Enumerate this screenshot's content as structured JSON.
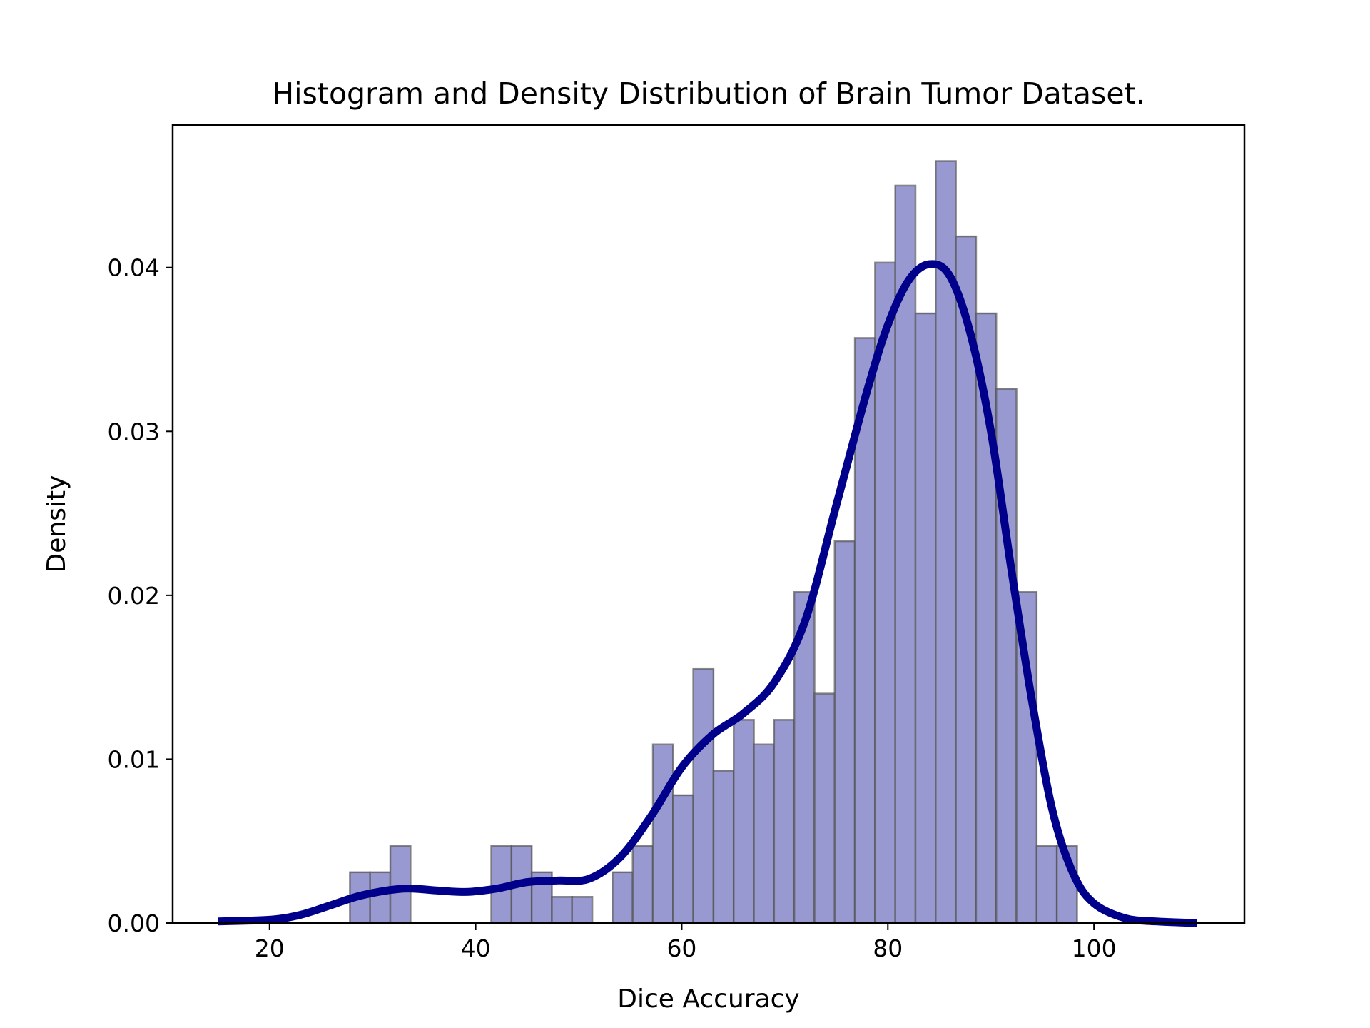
{
  "chart_data": {
    "type": "bar",
    "title": "Histogram and Density Distribution of Brain Tumor Dataset.",
    "xlabel": "Dice Accuracy",
    "ylabel": "Density",
    "xlim": [
      10.6,
      114.6
    ],
    "ylim": [
      0,
      0.0487
    ],
    "x_ticks": [
      20,
      40,
      60,
      80,
      100
    ],
    "x_tick_labels": [
      "20",
      "40",
      "60",
      "80",
      "100"
    ],
    "y_ticks": [
      0.0,
      0.01,
      0.02,
      0.03,
      0.04
    ],
    "y_tick_labels": [
      "0.00",
      "0.01",
      "0.02",
      "0.03",
      "0.04"
    ],
    "grid": false,
    "legend": "none",
    "histogram": {
      "bin_start": 27.8,
      "bin_width": 1.96,
      "values": [
        0.0031,
        0.0031,
        0.0047,
        0,
        0,
        0,
        0,
        0.0047,
        0.0047,
        0.0031,
        0.0016,
        0.0016,
        0,
        0.0031,
        0.0047,
        0.0109,
        0.0078,
        0.0155,
        0.0093,
        0.0124,
        0.0109,
        0.0124,
        0.0202,
        0.014,
        0.0233,
        0.0357,
        0.0403,
        0.045,
        0.0372,
        0.0465,
        0.0419,
        0.0372,
        0.0326,
        0.0202,
        0.0047,
        0.0047
      ],
      "fill_color": "#9999d1",
      "edge_color": "#555555"
    },
    "density_curve": {
      "x": [
        15,
        20,
        23,
        26,
        29,
        33,
        36,
        39,
        42,
        45,
        48,
        51,
        54,
        57,
        60,
        63,
        66,
        69,
        72,
        75,
        78,
        80,
        82,
        84,
        86,
        88,
        90,
        92,
        94,
        96,
        98,
        100,
        103,
        106,
        110
      ],
      "y": [
        0.0001,
        0.0002,
        0.0005,
        0.0011,
        0.0017,
        0.0021,
        0.002,
        0.0019,
        0.0021,
        0.0025,
        0.0026,
        0.0027,
        0.004,
        0.0065,
        0.0095,
        0.0115,
        0.0128,
        0.0147,
        0.0185,
        0.0255,
        0.0325,
        0.0365,
        0.0392,
        0.0402,
        0.0395,
        0.036,
        0.03,
        0.0215,
        0.0135,
        0.0068,
        0.003,
        0.0012,
        0.0003,
        0.0001,
        0.0
      ],
      "color": "#00008b"
    }
  }
}
